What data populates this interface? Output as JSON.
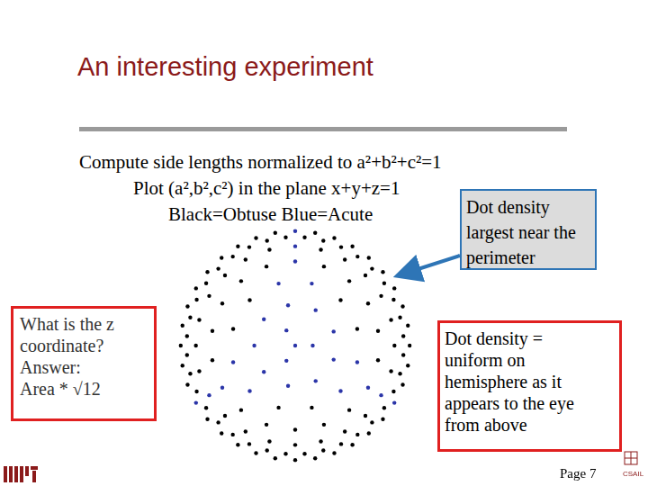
{
  "title": "An interesting experiment",
  "lines": [
    "Compute side lengths normalized to a²+b²+c²=1",
    "Plot (a²,b²,c²) in the plane x+y+z=1",
    "Black=Obtuse Blue=Acute"
  ],
  "callout": [
    "Dot density",
    "largest near the",
    "perimeter"
  ],
  "left_box": [
    "What is the z",
    "coordinate?",
    "Answer:",
    "Area * √12"
  ],
  "right_box": [
    "Dot density =",
    "uniform on",
    "hemisphere as it",
    "appears to the eye",
    "from above"
  ],
  "footer": {
    "page": "Page 7",
    "logo_text": "CSAIL"
  },
  "chart_data": {
    "type": "scatter",
    "xlim": [
      -1,
      1
    ],
    "ylim": [
      -1,
      1
    ],
    "grid": false,
    "tick_labels": false,
    "series": [
      {
        "color": "#000000",
        "values": [
          [
            0.98,
            0
          ],
          [
            0.965,
            0.171
          ],
          [
            0.921,
            0.335
          ],
          [
            0.849,
            0.49
          ],
          [
            0.751,
            0.63
          ],
          [
            0.63,
            0.751
          ],
          [
            0.49,
            0.849
          ],
          [
            0.335,
            0.921
          ],
          [
            0.171,
            0.965
          ],
          [
            -0.171,
            0.965
          ],
          [
            -0.335,
            0.921
          ],
          [
            -0.49,
            0.849
          ],
          [
            -0.63,
            0.751
          ],
          [
            -0.751,
            0.63
          ],
          [
            -0.849,
            0.49
          ],
          [
            -0.921,
            0.335
          ],
          [
            -0.965,
            0.171
          ],
          [
            -0.98,
            0
          ],
          [
            -0.965,
            -0.171
          ],
          [
            -0.921,
            -0.335
          ],
          [
            -0.751,
            -0.63
          ],
          [
            -0.63,
            -0.751
          ],
          [
            -0.49,
            -0.849
          ],
          [
            -0.335,
            -0.921
          ],
          [
            -0.171,
            -0.965
          ],
          [
            0,
            -0.98
          ],
          [
            0.171,
            -0.965
          ],
          [
            0.335,
            -0.921
          ],
          [
            0.49,
            -0.849
          ],
          [
            0.63,
            -0.751
          ],
          [
            0.751,
            -0.63
          ],
          [
            0.921,
            -0.335
          ],
          [
            0.965,
            -0.171
          ],
          [
            0.926,
            0.081
          ],
          [
            0.898,
            0.241
          ],
          [
            0.843,
            0.393
          ],
          [
            0.762,
            0.534
          ],
          [
            0.658,
            0.658
          ],
          [
            0.534,
            0.762
          ],
          [
            0.393,
            0.843
          ],
          [
            0.241,
            0.898
          ],
          [
            0.081,
            0.926
          ],
          [
            -0.081,
            0.926
          ],
          [
            -0.241,
            0.898
          ],
          [
            -0.393,
            0.843
          ],
          [
            -0.534,
            0.762
          ],
          [
            -0.658,
            0.658
          ],
          [
            -0.762,
            0.534
          ],
          [
            -0.843,
            0.393
          ],
          [
            -0.898,
            0.241
          ],
          [
            -0.926,
            0.081
          ],
          [
            -0.926,
            -0.081
          ],
          [
            -0.898,
            -0.241
          ],
          [
            -0.843,
            -0.393
          ],
          [
            -0.762,
            -0.534
          ],
          [
            -0.658,
            -0.658
          ],
          [
            -0.534,
            -0.762
          ],
          [
            -0.393,
            -0.843
          ],
          [
            -0.241,
            -0.898
          ],
          [
            -0.081,
            -0.926
          ],
          [
            0.081,
            -0.926
          ],
          [
            0.241,
            -0.898
          ],
          [
            0.393,
            -0.843
          ],
          [
            0.534,
            -0.762
          ],
          [
            0.658,
            -0.658
          ],
          [
            0.762,
            -0.534
          ],
          [
            0.843,
            -0.393
          ],
          [
            0.898,
            -0.241
          ],
          [
            0.926,
            -0.081
          ],
          [
            0.85,
            0
          ],
          [
            0.821,
            0.22
          ],
          [
            0.736,
            0.425
          ],
          [
            0.601,
            0.601
          ],
          [
            0.425,
            0.736
          ],
          [
            0.22,
            0.821
          ],
          [
            -0.22,
            0.821
          ],
          [
            -0.425,
            0.736
          ],
          [
            -0.601,
            0.601
          ],
          [
            -0.736,
            0.425
          ],
          [
            -0.821,
            0.22
          ],
          [
            -0.85,
            0
          ],
          [
            -0.821,
            -0.22
          ],
          [
            -0.601,
            -0.601
          ],
          [
            -0.425,
            -0.736
          ],
          [
            -0.22,
            -0.821
          ],
          [
            0,
            -0.85
          ],
          [
            0.22,
            -0.821
          ],
          [
            0.425,
            -0.736
          ],
          [
            0.601,
            -0.601
          ],
          [
            0.821,
            -0.22
          ],
          [
            0.709,
            0.125
          ],
          [
            0.624,
            0.36
          ],
          [
            0.463,
            0.552
          ],
          [
            0.246,
            0.677
          ],
          [
            -0.246,
            0.677
          ],
          [
            -0.463,
            0.552
          ],
          [
            -0.624,
            0.36
          ],
          [
            -0.709,
            0.125
          ],
          [
            -0.709,
            -0.125
          ],
          [
            -0.463,
            -0.552
          ],
          [
            -0.246,
            -0.677
          ],
          [
            0,
            -0.72
          ],
          [
            0.246,
            -0.677
          ],
          [
            0.463,
            -0.552
          ],
          [
            0.709,
            -0.125
          ],
          [
            0.531,
            0.142
          ],
          [
            0.389,
            0.389
          ],
          [
            -0.389,
            0.389
          ],
          [
            -0.531,
            0.142
          ],
          [
            -0.142,
            -0.531
          ],
          [
            0.142,
            -0.531
          ]
        ]
      },
      {
        "color": "#2b35a8",
        "values": [
          [
            0,
            0.98
          ],
          [
            -0.849,
            -0.49
          ],
          [
            0.849,
            -0.49
          ],
          [
            0,
            0.85
          ],
          [
            -0.736,
            -0.425
          ],
          [
            0.736,
            -0.425
          ],
          [
            0,
            0.72
          ],
          [
            -0.624,
            -0.36
          ],
          [
            0.624,
            -0.36
          ],
          [
            0.142,
            0.531
          ],
          [
            -0.142,
            0.531
          ],
          [
            -0.531,
            -0.142
          ],
          [
            0.531,
            -0.142
          ],
          [
            -0.389,
            -0.389
          ],
          [
            0.389,
            -0.389
          ],
          [
            0.329,
            0.12
          ],
          [
            0.175,
            0.303
          ],
          [
            -0.061,
            0.345
          ],
          [
            -0.268,
            0.225
          ],
          [
            -0.35,
            0
          ],
          [
            -0.268,
            -0.225
          ],
          [
            -0.061,
            -0.345
          ],
          [
            0.175,
            -0.303
          ],
          [
            0.329,
            -0.12
          ],
          [
            0.15,
            0
          ],
          [
            -0.075,
            0.13
          ],
          [
            -0.075,
            -0.13
          ],
          [
            0,
            0
          ]
        ]
      }
    ]
  }
}
